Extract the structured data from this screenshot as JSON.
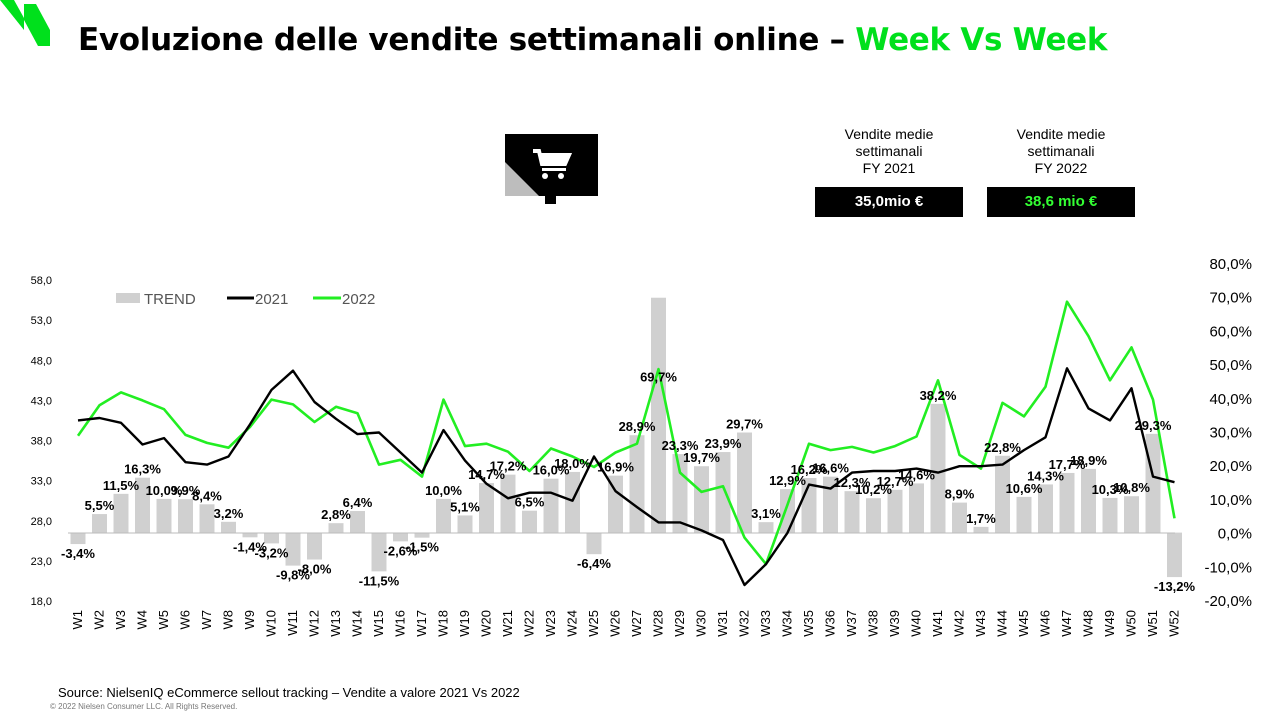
{
  "header": {
    "title_main": "Evoluzione delle vendite settimanali online –",
    "title_accent": "Week Vs Week"
  },
  "icons": {
    "brand": "nielsen-logo-icon",
    "cart": "shopping-cart-icon"
  },
  "kpis": [
    {
      "label_lines": [
        "Vendite medie",
        "settimanali",
        "FY 2021"
      ],
      "value": "35,0mio €"
    },
    {
      "label_lines": [
        "Vendite medie",
        "settimanali",
        "FY 2022"
      ],
      "value": "38,6 mio €"
    }
  ],
  "colors": {
    "accent": "#00e01c",
    "line2021": "#000000",
    "line2022": "#22ee22",
    "trend": "#d0d0d0"
  },
  "chart_data": {
    "type": "bar",
    "legend": [
      "TREND",
      "2021",
      "2022"
    ],
    "legend_position": "top-left",
    "grid": false,
    "categories": [
      "W1",
      "W2",
      "W3",
      "W4",
      "W5",
      "W6",
      "W7",
      "W8",
      "W9",
      "W10",
      "W11",
      "W12",
      "W13",
      "W14",
      "W15",
      "W16",
      "W17",
      "W18",
      "W19",
      "W20",
      "W21",
      "W22",
      "W23",
      "W24",
      "W25",
      "W26",
      "W27",
      "W28",
      "W29",
      "W30",
      "W31",
      "W32",
      "W33",
      "W34",
      "W35",
      "W36",
      "W37",
      "W38",
      "W39",
      "W40",
      "W41",
      "W42",
      "W43",
      "W44",
      "W45",
      "W46",
      "W47",
      "W48",
      "W49",
      "W50",
      "W51",
      "W52"
    ],
    "left_axis": {
      "ylim": [
        18,
        58
      ],
      "ticks": [
        "18,0",
        "23,0",
        "28,0",
        "33,0",
        "38,0",
        "43,0",
        "48,0",
        "53,0",
        "58,0"
      ]
    },
    "right_axis": {
      "ylim": [
        -20,
        80
      ],
      "ticks": [
        "-20,0%",
        "-10,0%",
        "0,0%",
        "10,0%",
        "20,0%",
        "30,0%",
        "40,0%",
        "50,0%",
        "60,0%",
        "70,0%",
        "80,0%"
      ]
    },
    "series": [
      {
        "name": "TREND",
        "type": "bar",
        "axis": "right",
        "values": [
          -3.4,
          5.5,
          11.5,
          16.3,
          10.0,
          9.9,
          8.4,
          3.2,
          -1.4,
          -3.2,
          -9.8,
          -8.0,
          2.8,
          6.4,
          -11.5,
          -2.6,
          -1.5,
          10.0,
          5.1,
          14.7,
          17.2,
          6.5,
          16.0,
          18.0,
          -6.4,
          16.9,
          28.9,
          69.7,
          23.3,
          19.7,
          23.9,
          29.7,
          3.1,
          12.9,
          16.2,
          16.6,
          12.3,
          10.2,
          12.7,
          14.6,
          38.2,
          8.9,
          1.7,
          22.8,
          10.6,
          14.3,
          17.7,
          18.9,
          10.3,
          10.8,
          29.3,
          -13.2
        ],
        "labels": [
          "-3,4%",
          "5,5%",
          "11,5%",
          "16,3%",
          "10,0%",
          "9,9%",
          "8,4%",
          "3,2%",
          "-1,4%",
          "-3,2%",
          "-9,8%",
          "-8,0%",
          "2,8%",
          "6,4%",
          "-11,5%",
          "-2,6%",
          "-1,5%",
          "10,0%",
          "5,1%",
          "14,7%",
          "17,2%",
          "6,5%",
          "16,0%",
          "18,0%",
          "-6,4%",
          "16,9%",
          "28,9%",
          "69,7%",
          "23,3%",
          "19,7%",
          "23,9%",
          "29,7%",
          "3,1%",
          "12,9%",
          "16,2%",
          "16,6%",
          "12,3%",
          "10,2%",
          "12,7%",
          "14,6%",
          "38,2%",
          "8,9%",
          "1,7%",
          "22,8%",
          "10,6%",
          "14,3%",
          "17,7%",
          "18,9%",
          "10,3%",
          "10,8%",
          "29,3%",
          "-13,2%"
        ]
      },
      {
        "name": "2021",
        "type": "line",
        "axis": "left",
        "values": [
          40.5,
          40.8,
          40.2,
          37.5,
          38.3,
          35.3,
          35.0,
          36.0,
          40.0,
          44.3,
          46.7,
          42.8,
          40.7,
          38.8,
          39.0,
          36.5,
          34.0,
          39.3,
          35.5,
          32.6,
          30.8,
          31.5,
          31.5,
          30.5,
          36.0,
          31.7,
          29.7,
          27.8,
          27.8,
          26.8,
          25.6,
          20.0,
          22.6,
          26.5,
          32.5,
          32.0,
          34.0,
          34.2,
          34.2,
          34.5,
          34.0,
          34.8,
          34.8,
          35.0,
          36.8,
          38.4,
          47.0,
          42.0,
          40.5,
          44.5,
          33.5,
          32.8
        ]
      },
      {
        "name": "2022",
        "type": "line",
        "axis": "left",
        "values": [
          38.6,
          42.4,
          44.0,
          43.0,
          41.9,
          38.7,
          37.7,
          37.1,
          39.7,
          43.1,
          42.5,
          40.3,
          42.2,
          41.4,
          35.0,
          35.6,
          33.5,
          43.1,
          37.3,
          37.6,
          36.6,
          34.2,
          37.0,
          36.0,
          34.7,
          36.5,
          37.6,
          46.9,
          34.0,
          31.6,
          32.3,
          25.9,
          22.6,
          30.0,
          37.6,
          36.8,
          37.2,
          36.5,
          37.3,
          38.5,
          45.5,
          36.2,
          34.5,
          42.7,
          41.0,
          44.7,
          55.3,
          51.0,
          45.5,
          49.6,
          43.1,
          28.3
        ]
      }
    ]
  },
  "footer": {
    "source": "Source:  NielsenIQ eCommerce  sellout tracking – Vendite a valore 2021 Vs 2022",
    "copyright": "© 2022 Nielsen Consumer LLC. All Rights Reserved."
  }
}
